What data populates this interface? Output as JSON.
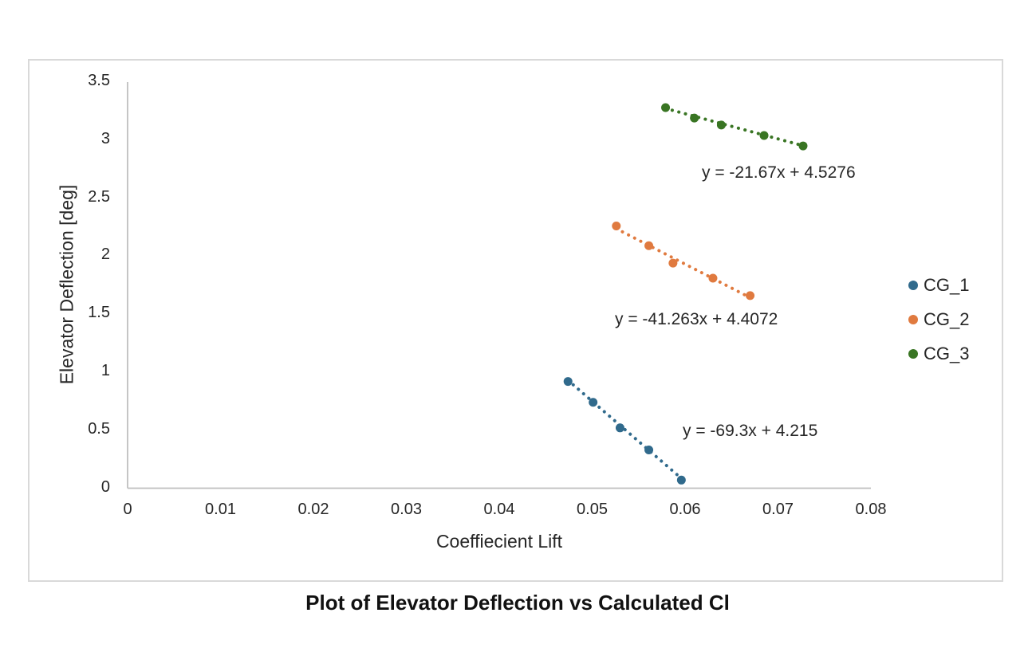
{
  "chart_data": {
    "type": "scatter",
    "title": "Plot of Elevator Deflection vs Calculated Cl",
    "xlabel": "Coeffiecient Lift",
    "ylabel": "Elevator Deflection [deg]",
    "xlim": [
      0,
      0.08
    ],
    "ylim": [
      0,
      3.5
    ],
    "x_tick_labels": [
      "0",
      "0.01",
      "0.02",
      "0.03",
      "0.04",
      "0.05",
      "0.06",
      "0.07",
      "0.08"
    ],
    "y_tick_labels": [
      "0",
      "0.5",
      "1",
      "1.5",
      "2",
      "2.5",
      "3",
      "3.5"
    ],
    "grid": false,
    "legend_position": "right-center",
    "marker": "circle",
    "trendline_style": "dotted",
    "axis_color": "#BFBFBF",
    "frame_color": "#D9D9D9",
    "series": [
      {
        "name": "CG_1",
        "color": "#306A8C",
        "points": [
          [
            0.0474,
            0.92
          ],
          [
            0.0501,
            0.74
          ],
          [
            0.053,
            0.52
          ],
          [
            0.0561,
            0.33
          ],
          [
            0.0596,
            0.07
          ]
        ],
        "trend": {
          "slope": -69.3,
          "intercept": 4.215,
          "label": "y = -69.3x + 4.215",
          "x_range": [
            0.0474,
            0.0596
          ]
        }
      },
      {
        "name": "CG_2",
        "color": "#E07A3F",
        "points": [
          [
            0.0526,
            2.26
          ],
          [
            0.0561,
            2.09
          ],
          [
            0.0587,
            1.94
          ],
          [
            0.063,
            1.81
          ],
          [
            0.067,
            1.66
          ]
        ],
        "trend": {
          "slope": -41.263,
          "intercept": 4.4072,
          "label": "y = -41.263x + 4.4072",
          "x_range": [
            0.0526,
            0.067
          ]
        }
      },
      {
        "name": "CG_3",
        "color": "#397523",
        "points": [
          [
            0.0579,
            3.28
          ],
          [
            0.061,
            3.19
          ],
          [
            0.0639,
            3.13
          ],
          [
            0.0685,
            3.04
          ],
          [
            0.0727,
            2.95
          ]
        ],
        "trend": {
          "slope": -21.67,
          "intercept": 4.5276,
          "label": "y = -21.67x + 4.5276",
          "x_range": [
            0.0579,
            0.0727
          ]
        }
      }
    ]
  }
}
